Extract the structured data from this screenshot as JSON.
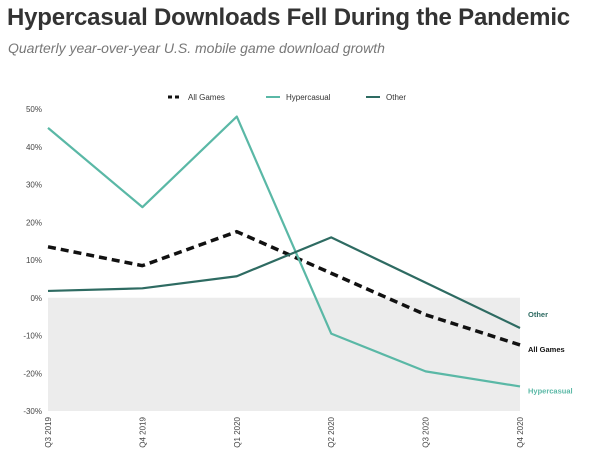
{
  "chart_data": {
    "type": "line",
    "title": "Hypercasual Downloads Fell During the Pandemic",
    "subtitle": "Quarterly year-over-year U.S. mobile game download growth",
    "xlabel": "",
    "ylabel": "",
    "categories": [
      "Q3 2019",
      "Q4 2019",
      "Q1 2020",
      "Q2 2020",
      "Q3 2020",
      "Q4 2020"
    ],
    "yticks": [
      "50%",
      "40%",
      "30%",
      "20%",
      "10%",
      "0%",
      "-10%",
      "-20%",
      "-30%"
    ],
    "ylim": [
      -30,
      50
    ],
    "grid": false,
    "legend_position": "top-center",
    "series": [
      {
        "name": "All Games",
        "end_label": "All Games",
        "color": "#111111",
        "style": "dashed",
        "values": [
          13.5,
          8.5,
          17.5,
          6.5,
          -4.5,
          -12.5
        ]
      },
      {
        "name": "Hypercasual",
        "end_label": "Hypercasual",
        "color": "#5ab8a6",
        "style": "solid",
        "values": [
          45,
          24,
          48,
          -9.5,
          -19.5,
          -23.5
        ]
      },
      {
        "name": "Other",
        "end_label": "Other",
        "color": "#2e6b62",
        "style": "solid",
        "values": [
          1.8,
          2.5,
          5.7,
          16,
          4,
          -8
        ]
      }
    ]
  }
}
